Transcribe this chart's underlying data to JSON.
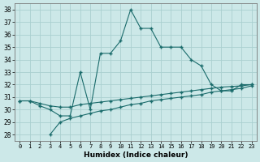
{
  "xlabel": "Humidex (Indice chaleur)",
  "x_all": [
    0,
    1,
    2,
    3,
    4,
    5,
    6,
    7,
    8,
    9,
    10,
    11,
    12,
    13,
    14,
    15,
    16,
    17,
    18,
    19,
    20,
    21,
    22,
    23
  ],
  "y_top": [
    30.7,
    30.7,
    30.3,
    30.0,
    29.5,
    29.5,
    33.0,
    30.0,
    34.5,
    34.5,
    35.5,
    38.0,
    36.5,
    36.5,
    35.0,
    35.0,
    35.0,
    34.0,
    33.5,
    32.0,
    31.5,
    31.5,
    32.0,
    32.0
  ],
  "y_mid": [
    30.7,
    30.7,
    30.5,
    30.3,
    30.2,
    30.2,
    30.4,
    30.5,
    30.6,
    30.7,
    30.8,
    30.9,
    31.0,
    31.1,
    31.2,
    31.3,
    31.4,
    31.5,
    31.6,
    31.7,
    31.8,
    31.85,
    31.9,
    32.0
  ],
  "x_bot": [
    3,
    4,
    5,
    6,
    7,
    8,
    9,
    10,
    11,
    12,
    13,
    14,
    15,
    16,
    17,
    18,
    19,
    20,
    21,
    22,
    23
  ],
  "y_bot": [
    28.0,
    29.0,
    29.3,
    29.5,
    29.7,
    29.9,
    30.0,
    30.2,
    30.4,
    30.5,
    30.7,
    30.8,
    30.9,
    31.0,
    31.1,
    31.2,
    31.4,
    31.5,
    31.6,
    31.7,
    31.9
  ],
  "ylim": [
    27.5,
    38.5
  ],
  "yticks": [
    28,
    29,
    30,
    31,
    32,
    33,
    34,
    35,
    36,
    37,
    38
  ],
  "xticks": [
    0,
    1,
    2,
    3,
    4,
    5,
    6,
    7,
    8,
    9,
    10,
    11,
    12,
    13,
    14,
    15,
    16,
    17,
    18,
    19,
    20,
    21,
    22,
    23
  ],
  "bg_color": "#cce8e8",
  "line_color": "#1a6b6b",
  "grid_color": "#aad0d0"
}
